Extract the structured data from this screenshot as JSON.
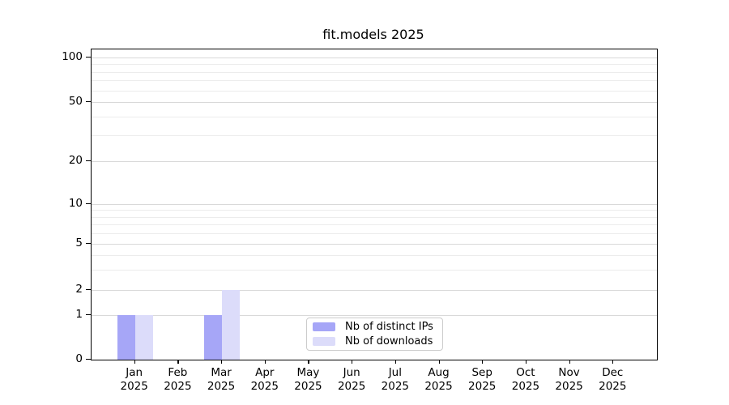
{
  "chart_data": {
    "type": "bar",
    "title": "fit.models 2025",
    "categories": [
      "Jan",
      "Feb",
      "Mar",
      "Apr",
      "May",
      "Jun",
      "Jul",
      "Aug",
      "Sep",
      "Oct",
      "Nov",
      "Dec"
    ],
    "category_year": "2025",
    "series": [
      {
        "name": "Nb of distinct IPs",
        "color": "#a6a6f7",
        "values": [
          1,
          0,
          1,
          0,
          0,
          0,
          0,
          0,
          0,
          0,
          0,
          0
        ]
      },
      {
        "name": "Nb of downloads",
        "color": "#dcdcfa",
        "values": [
          1,
          0,
          2,
          0,
          0,
          0,
          0,
          0,
          0,
          0,
          0,
          0
        ]
      }
    ],
    "y_axis": {
      "scale": "symlog",
      "range": [
        0,
        100
      ],
      "ticks": [
        0,
        1,
        2,
        5,
        10,
        20,
        50,
        100
      ],
      "minor_ticks": [
        3,
        4,
        6,
        7,
        8,
        9,
        30,
        40,
        60,
        70,
        80,
        90
      ]
    },
    "grid": {
      "enabled": true,
      "major_color": "#d9d9d9",
      "minor_color": "#ececec"
    },
    "legend": {
      "position": "inside-bottom-center"
    }
  }
}
